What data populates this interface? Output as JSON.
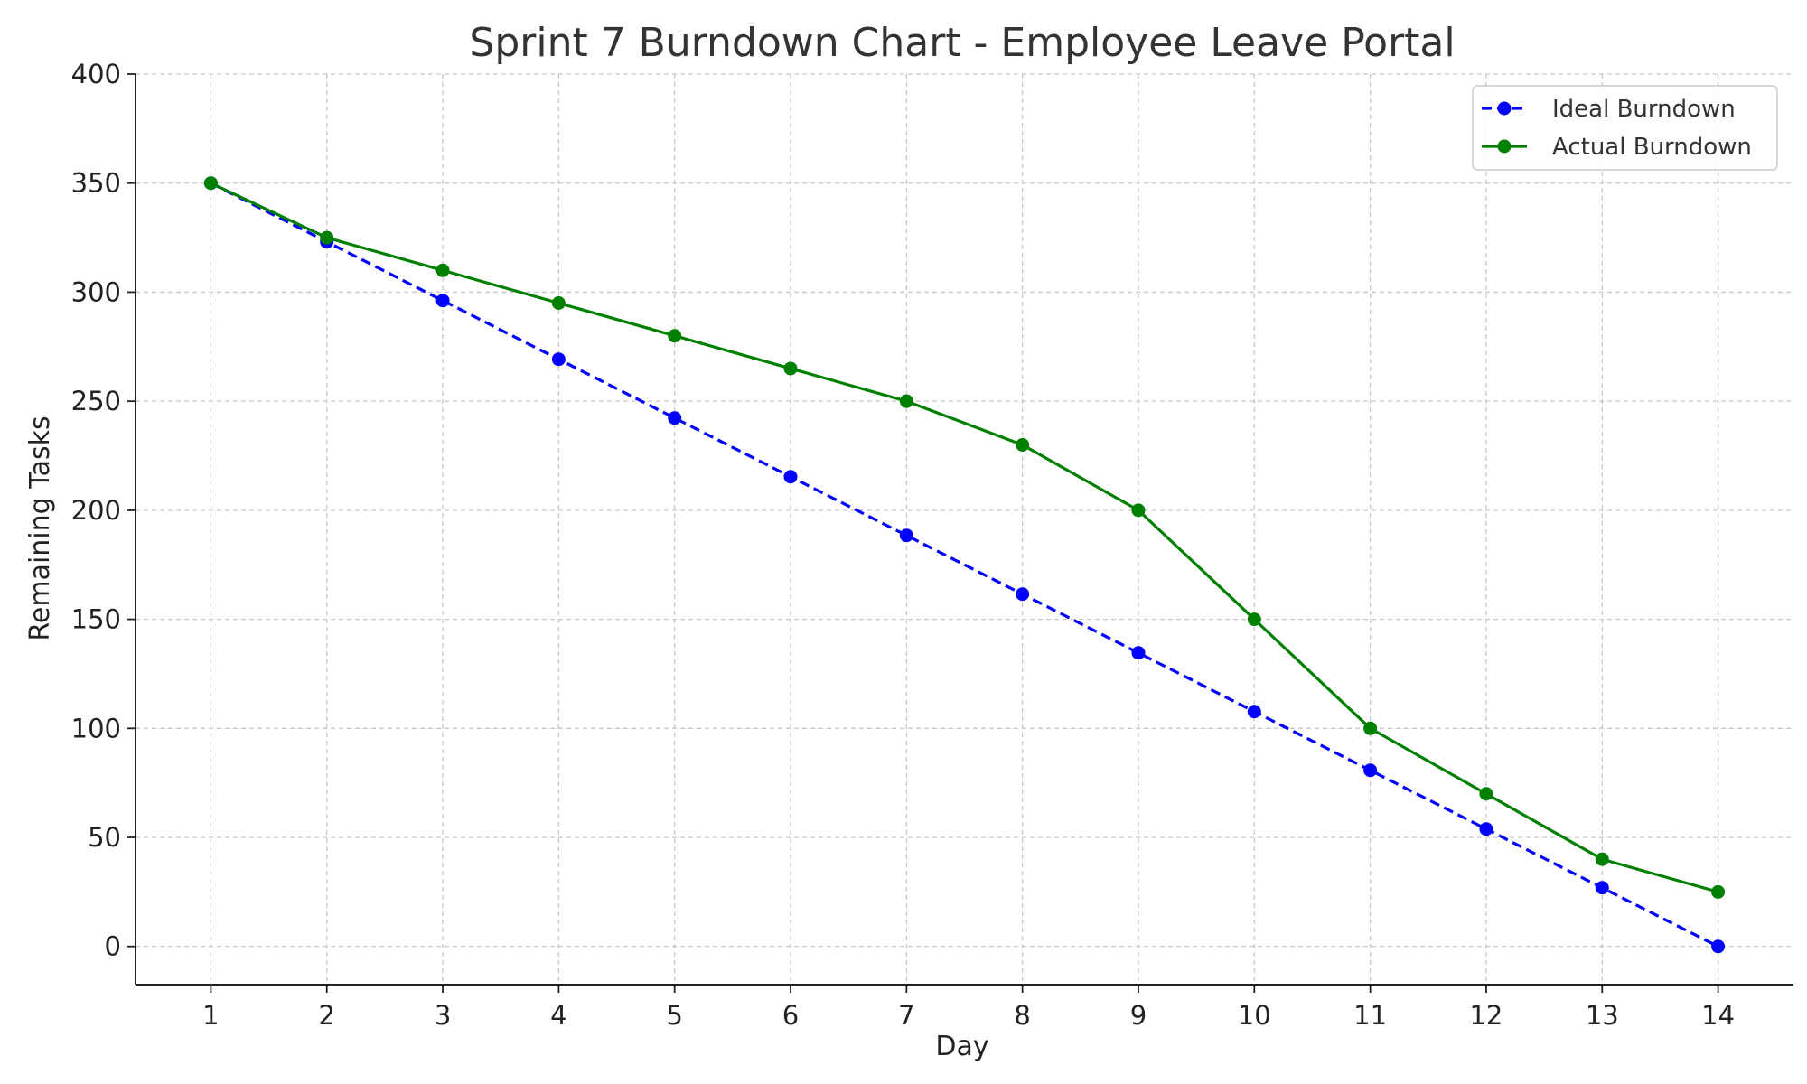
{
  "chart_data": {
    "type": "line",
    "title": "Sprint 7 Burndown Chart - Employee Leave Portal",
    "xlabel": "Day",
    "ylabel": "Remaining Tasks",
    "x": [
      1,
      2,
      3,
      4,
      5,
      6,
      7,
      8,
      9,
      10,
      11,
      12,
      13,
      14
    ],
    "xticks": [
      "1",
      "2",
      "3",
      "4",
      "5",
      "6",
      "7",
      "8",
      "9",
      "10",
      "11",
      "12",
      "13",
      "14"
    ],
    "yticks": [
      "0",
      "50",
      "100",
      "150",
      "200",
      "250",
      "300",
      "350",
      "400"
    ],
    "xlim": [
      0.35,
      14.65
    ],
    "ylim": [
      -17.5,
      400
    ],
    "grid": true,
    "legend_position": "top-right",
    "series": [
      {
        "name": "Ideal Burndown",
        "color": "#0000ff",
        "line_style": "dashed",
        "marker": "circle",
        "values": [
          350,
          323.08,
          296.15,
          269.23,
          242.31,
          215.38,
          188.46,
          161.54,
          134.62,
          107.69,
          80.77,
          53.85,
          26.92,
          0
        ]
      },
      {
        "name": "Actual Burndown",
        "color": "#008000",
        "line_style": "solid",
        "marker": "circle",
        "values": [
          350,
          325,
          310,
          295,
          280,
          265,
          250,
          230,
          200,
          150,
          100,
          70,
          40,
          25
        ]
      }
    ]
  }
}
